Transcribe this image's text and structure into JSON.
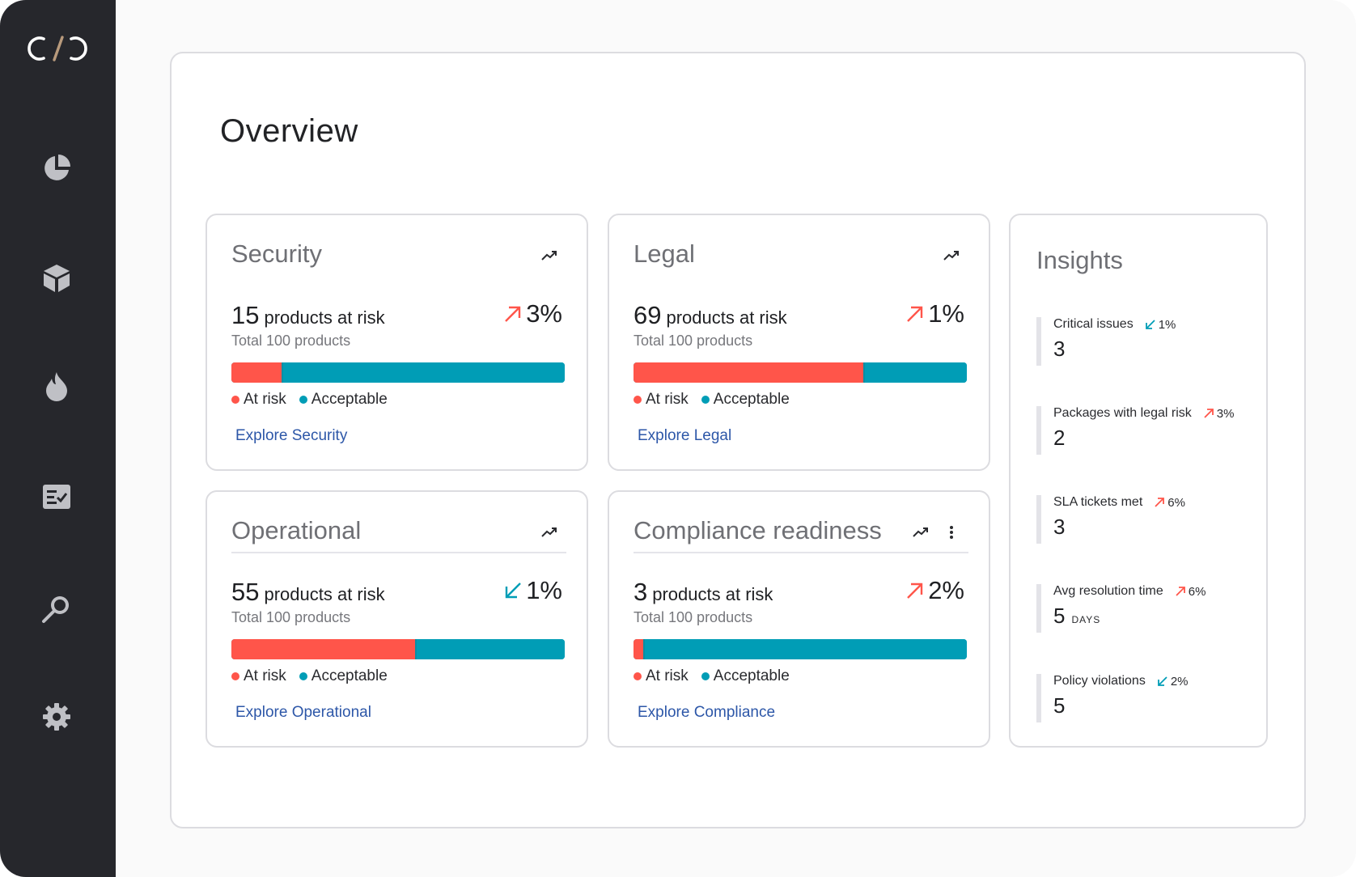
{
  "brand": {
    "logo_text": "C/C",
    "accent": "#b89a7c"
  },
  "nav": [
    {
      "icon": "pie-chart-icon"
    },
    {
      "icon": "package-icon"
    },
    {
      "icon": "flame-icon"
    },
    {
      "icon": "checklist-icon"
    },
    {
      "icon": "search-icon"
    },
    {
      "icon": "gear-icon"
    }
  ],
  "page": {
    "title": "Overview"
  },
  "legend": {
    "at_risk": "At risk",
    "acceptable": "Acceptable"
  },
  "colors": {
    "at_risk": "#ff554a",
    "acceptable": "#009db6",
    "up": "#ff554a",
    "down": "#009db6",
    "link": "#2d57a8"
  },
  "cards": {
    "security": {
      "title": "Security",
      "count": "15",
      "suffix": "products at risk",
      "total": "Total 100 products",
      "change": "3%",
      "direction": "up",
      "at_risk_share": 0.15,
      "link": "Explore Security"
    },
    "legal": {
      "title": "Legal",
      "count": "69",
      "suffix": "products at risk",
      "total": "Total 100 products",
      "change": "1%",
      "direction": "up",
      "at_risk_share": 0.69,
      "link": "Explore Legal"
    },
    "operational": {
      "title": "Operational",
      "count": "55",
      "suffix": "products at risk",
      "total": "Total 100 products",
      "change": "1%",
      "direction": "down",
      "at_risk_share": 0.55,
      "link": "Explore Operational"
    },
    "compliance": {
      "title": "Compliance readiness",
      "count": "3",
      "suffix": "products at risk",
      "total": "Total 100 products",
      "change": "2%",
      "direction": "up",
      "at_risk_share": 0.03,
      "link": "Explore Compliance"
    }
  },
  "insights": {
    "title": "Insights",
    "items": [
      {
        "label": "Critical issues",
        "delta": "1%",
        "direction": "down",
        "value": "3",
        "unit": ""
      },
      {
        "label": "Packages with legal risk",
        "delta": "3%",
        "direction": "up",
        "value": "2",
        "unit": ""
      },
      {
        "label": "SLA tickets met",
        "delta": "6%",
        "direction": "up",
        "value": "3",
        "unit": ""
      },
      {
        "label": "Avg resolution time",
        "delta": "6%",
        "direction": "up",
        "value": "5",
        "unit": "DAYS"
      },
      {
        "label": "Policy violations",
        "delta": "2%",
        "direction": "down",
        "value": "5",
        "unit": ""
      }
    ]
  }
}
